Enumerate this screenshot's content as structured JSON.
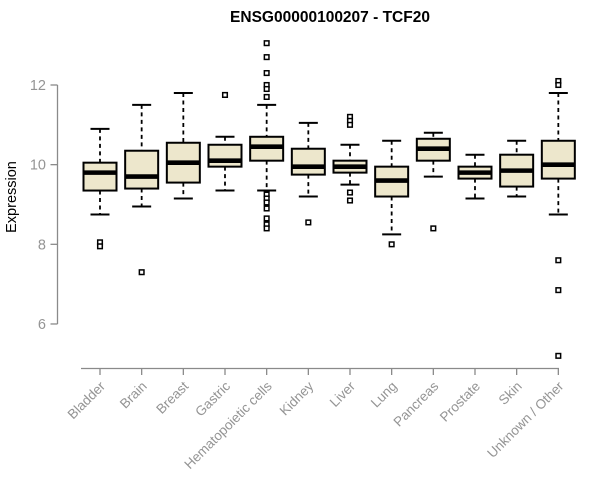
{
  "chart_data": {
    "type": "boxplot",
    "title": "ENSG00000100207 - TCF20",
    "xlabel": "",
    "ylabel": "Expression",
    "yticks": [
      6,
      8,
      10,
      12
    ],
    "ylim": [
      5.0,
      13.3
    ],
    "grid": false,
    "legend": "none",
    "categories": [
      "Bladder",
      "Brain",
      "Breast",
      "Gastric",
      "Hematopoietic cells",
      "Kidney",
      "Liver",
      "Lung",
      "Pancreas",
      "Prostate",
      "Skin",
      "Unknown / Other"
    ],
    "boxes": [
      {
        "category": "Bladder",
        "low": 8.75,
        "q1": 9.35,
        "median": 9.8,
        "q3": 10.05,
        "high": 10.9,
        "outliers": [
          8.05,
          7.95
        ]
      },
      {
        "category": "Brain",
        "low": 8.95,
        "q1": 9.4,
        "median": 9.7,
        "q3": 10.35,
        "high": 11.5,
        "outliers": [
          7.3
        ]
      },
      {
        "category": "Breast",
        "low": 9.15,
        "q1": 9.55,
        "median": 10.05,
        "q3": 10.55,
        "high": 11.8,
        "outliers": []
      },
      {
        "category": "Gastric",
        "low": 9.35,
        "q1": 9.95,
        "median": 10.1,
        "q3": 10.5,
        "high": 10.7,
        "outliers": [
          11.75
        ]
      },
      {
        "category": "Hematopoietic cells",
        "low": 9.35,
        "q1": 10.1,
        "median": 10.45,
        "q3": 10.7,
        "high": 11.5,
        "outliers": [
          13.05,
          12.7,
          12.3,
          12.0,
          11.9,
          11.7,
          9.25,
          9.15,
          9.05,
          8.9,
          8.65,
          8.5,
          8.4
        ]
      },
      {
        "category": "Kidney",
        "low": 9.2,
        "q1": 9.75,
        "median": 9.95,
        "q3": 10.4,
        "high": 11.05,
        "outliers": [
          8.55
        ]
      },
      {
        "category": "Liver",
        "low": 9.5,
        "q1": 9.8,
        "median": 9.95,
        "q3": 10.1,
        "high": 10.5,
        "outliers": [
          11.2,
          11.1,
          11.0,
          9.3,
          9.1
        ]
      },
      {
        "category": "Lung",
        "low": 8.25,
        "q1": 9.2,
        "median": 9.6,
        "q3": 9.95,
        "high": 10.6,
        "outliers": [
          8.0
        ]
      },
      {
        "category": "Pancreas",
        "low": 9.7,
        "q1": 10.1,
        "median": 10.4,
        "q3": 10.65,
        "high": 10.8,
        "outliers": [
          8.4
        ]
      },
      {
        "category": "Prostate",
        "low": 9.15,
        "q1": 9.65,
        "median": 9.8,
        "q3": 9.95,
        "high": 10.25,
        "outliers": []
      },
      {
        "category": "Skin",
        "low": 9.2,
        "q1": 9.45,
        "median": 9.85,
        "q3": 10.25,
        "high": 10.6,
        "outliers": []
      },
      {
        "category": "Unknown / Other",
        "low": 8.75,
        "q1": 9.65,
        "median": 10.0,
        "q3": 10.6,
        "high": 11.8,
        "outliers": [
          12.1,
          12.0,
          7.6,
          6.85,
          5.2
        ]
      }
    ],
    "colors": {
      "box_fill": "#EDE7CC",
      "box_stroke": "#000000",
      "median": "#000000",
      "whisker": "#000000",
      "outlier_fill": "#ffffff",
      "outlier_stroke": "#000000",
      "axis": "#8A8A8A",
      "tick_label": "#949494",
      "title": "#000000"
    }
  }
}
